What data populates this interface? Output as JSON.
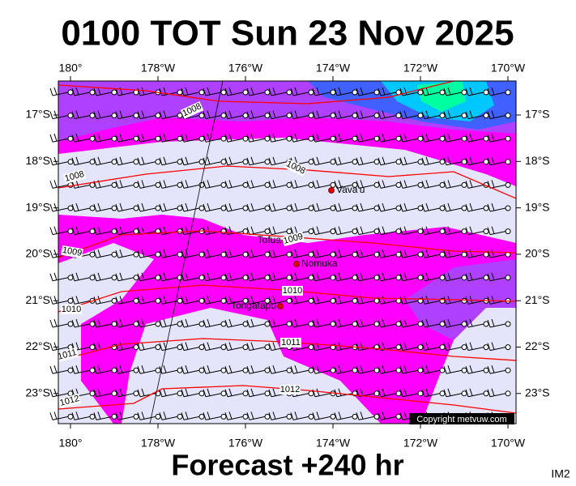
{
  "header": {
    "title": "0100 TOT Sun 23 Nov 2025"
  },
  "map": {
    "lon_labels": [
      "180°",
      "178°W",
      "176°W",
      "174°W",
      "172°W",
      "170°W"
    ],
    "lat_labels": [
      "17°S",
      "18°S",
      "19°S",
      "20°S",
      "21°S",
      "22°S",
      "23°S"
    ],
    "places": [
      "Vava'u",
      "Tofua",
      "Nomuka",
      "Tongatapu"
    ],
    "isobar_labels": [
      "1008",
      "1008",
      "1008",
      "1009",
      "1009",
      "1010",
      "1010",
      "1011",
      "1011",
      "1012",
      "1012"
    ],
    "copyright": "Copyright metvuw.com"
  },
  "footer": {
    "subtitle": "Forecast +240 hr",
    "code": "IM2"
  }
}
